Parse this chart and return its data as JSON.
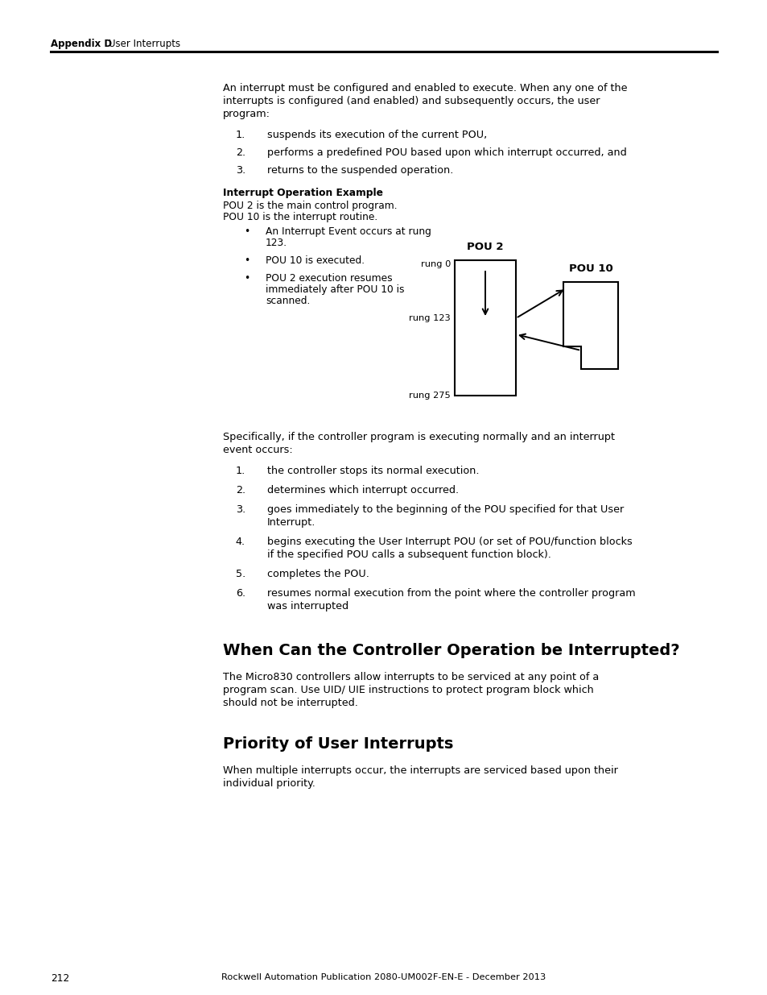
{
  "bg_color": "#ffffff",
  "header_bold": "Appendix D",
  "header_normal": "User Interrupts",
  "footer_page": "212",
  "footer_pub": "Rockwell Automation Publication 2080-UM002F-EN-E - December 2013",
  "intro_text_lines": [
    "An interrupt must be configured and enabled to execute. When any one of the",
    "interrupts is configured (and enabled) and subsequently occurs, the user",
    "program:"
  ],
  "numbered_items_1": [
    "suspends its execution of the current POU,",
    "performs a predefined POU based upon which interrupt occurred, and",
    "returns to the suspended operation."
  ],
  "interrupt_op_title": "Interrupt Operation Example",
  "interrupt_op_lines": [
    "POU 2 is the main control program.",
    "POU 10 is the interrupt routine."
  ],
  "bullet_items_1": [
    [
      "An Interrupt Event occurs at rung",
      "123."
    ],
    [
      "POU 10 is executed."
    ],
    [
      "POU 2 execution resumes",
      "immediately after POU 10 is",
      "scanned."
    ]
  ],
  "pou2_label": "POU 2",
  "pou10_label": "POU 10",
  "rung0_label": "rung 0",
  "rung123_label": "rung 123",
  "rung275_label": "rung 275",
  "specifically_text_lines": [
    "Specifically, if the controller program is executing normally and an interrupt",
    "event occurs:"
  ],
  "numbered_items_2": [
    [
      "the controller stops its normal execution."
    ],
    [
      "determines which interrupt occurred."
    ],
    [
      "goes immediately to the beginning of the POU specified for that User",
      "Interrupt."
    ],
    [
      "begins executing the User Interrupt POU (or set of POU/function blocks",
      "if the specified POU calls a subsequent function block)."
    ],
    [
      "completes the POU."
    ],
    [
      "resumes normal execution from the point where the controller program",
      "was interrupted"
    ]
  ],
  "section1_title": "When Can the Controller Operation be Interrupted?",
  "section1_text_lines": [
    "The Micro830 controllers allow interrupts to be serviced at any point of a",
    "program scan. Use UID/ UIE instructions to protect program block which",
    "should not be interrupted."
  ],
  "section2_title": "Priority of User Interrupts",
  "section2_text_lines": [
    "When multiple interrupts occur, the interrupts are serviced based upon their",
    "individual priority."
  ]
}
